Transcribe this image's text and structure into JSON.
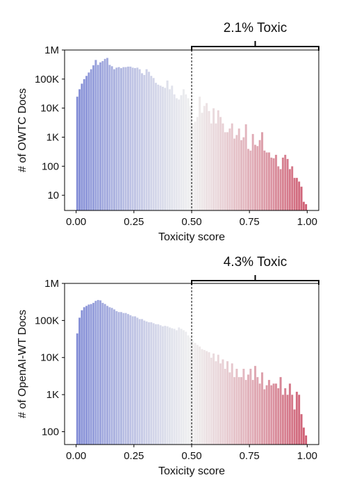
{
  "chart_data": [
    {
      "type": "bar",
      "panel": "top",
      "xlabel": "Toxicity score",
      "ylabel": "# of OWTC Docs",
      "yscale": "log",
      "xlim": [
        -0.05,
        1.05
      ],
      "ylim": [
        3,
        1000000
      ],
      "xticks": [
        0.0,
        0.25,
        0.5,
        0.75,
        1.0
      ],
      "xtick_labels": [
        "0.00",
        "0.25",
        "0.50",
        "0.75",
        "1.00"
      ],
      "yticks": [
        10,
        100,
        1000,
        10000,
        100000,
        1000000
      ],
      "ytick_labels": [
        "10",
        "100",
        "1K",
        "10K",
        "100K",
        "1M"
      ],
      "threshold": 0.5,
      "bracket": {
        "from": 0.5,
        "to": 1.05,
        "label": "2.1% Toxic"
      },
      "bin_width": 0.01,
      "colormap": {
        "low": "#3b4cc0",
        "mid": "#dddddd",
        "high": "#b40426"
      },
      "bin_starts": [
        0.0,
        0.01,
        0.02,
        0.03,
        0.04,
        0.05,
        0.06,
        0.07,
        0.08,
        0.09,
        0.1,
        0.11,
        0.12,
        0.13,
        0.14,
        0.15,
        0.16,
        0.17,
        0.18,
        0.19,
        0.2,
        0.21,
        0.22,
        0.23,
        0.24,
        0.25,
        0.26,
        0.27,
        0.28,
        0.29,
        0.3,
        0.31,
        0.32,
        0.33,
        0.34,
        0.35,
        0.36,
        0.37,
        0.38,
        0.39,
        0.4,
        0.41,
        0.42,
        0.43,
        0.44,
        0.45,
        0.46,
        0.47,
        0.48,
        0.49,
        0.5,
        0.51,
        0.52,
        0.53,
        0.54,
        0.55,
        0.56,
        0.57,
        0.58,
        0.59,
        0.6,
        0.61,
        0.62,
        0.63,
        0.64,
        0.65,
        0.66,
        0.67,
        0.68,
        0.69,
        0.7,
        0.71,
        0.72,
        0.73,
        0.74,
        0.75,
        0.76,
        0.77,
        0.78,
        0.79,
        0.8,
        0.81,
        0.82,
        0.83,
        0.84,
        0.85,
        0.86,
        0.87,
        0.88,
        0.89,
        0.9,
        0.91,
        0.92,
        0.93,
        0.94,
        0.95,
        0.96,
        0.97,
        0.98,
        0.99
      ],
      "values": [
        25000,
        45000,
        70000,
        100000,
        130000,
        170000,
        220000,
        300000,
        460000,
        310000,
        380000,
        420000,
        500000,
        540000,
        310000,
        280000,
        220000,
        250000,
        260000,
        240000,
        260000,
        260000,
        270000,
        270000,
        250000,
        240000,
        250000,
        220000,
        160000,
        140000,
        220000,
        180000,
        130000,
        110000,
        75000,
        65000,
        60000,
        55000,
        50000,
        90000,
        45000,
        60000,
        30000,
        22000,
        20000,
        28000,
        45000,
        30000,
        22000,
        12000,
        3000,
        3500,
        5000,
        25000,
        7000,
        12000,
        15000,
        8000,
        3000,
        10000,
        3000,
        8500,
        5000,
        3000,
        1500,
        1500,
        2000,
        3000,
        900,
        1200,
        2000,
        800,
        1000,
        2800,
        400,
        350,
        1300,
        550,
        500,
        800,
        1500,
        350,
        300,
        300,
        200,
        190,
        250,
        100,
        80,
        200,
        250,
        180,
        80,
        100,
        40,
        40,
        30,
        20,
        6,
        5
      ]
    },
    {
      "type": "bar",
      "panel": "bottom",
      "xlabel": "Toxicity score",
      "ylabel": "# of OpenAI-WT Docs",
      "yscale": "log",
      "xlim": [
        -0.05,
        1.05
      ],
      "ylim": [
        45,
        1000000
      ],
      "xticks": [
        0.0,
        0.25,
        0.5,
        0.75,
        1.0
      ],
      "xtick_labels": [
        "0.00",
        "0.25",
        "0.50",
        "0.75",
        "1.00"
      ],
      "yticks": [
        100,
        1000,
        10000,
        100000,
        1000000
      ],
      "ytick_labels": [
        "100",
        "1K",
        "10K",
        "100K",
        "1M"
      ],
      "threshold": 0.5,
      "bracket": {
        "from": 0.5,
        "to": 1.05,
        "label": "4.3% Toxic"
      },
      "bin_width": 0.01,
      "colormap": {
        "low": "#3b4cc0",
        "mid": "#dddddd",
        "high": "#b40426"
      },
      "bin_starts": [
        0.0,
        0.01,
        0.02,
        0.03,
        0.04,
        0.05,
        0.06,
        0.07,
        0.08,
        0.09,
        0.1,
        0.11,
        0.12,
        0.13,
        0.14,
        0.15,
        0.16,
        0.17,
        0.18,
        0.19,
        0.2,
        0.21,
        0.22,
        0.23,
        0.24,
        0.25,
        0.26,
        0.27,
        0.28,
        0.29,
        0.3,
        0.31,
        0.32,
        0.33,
        0.34,
        0.35,
        0.36,
        0.37,
        0.38,
        0.39,
        0.4,
        0.41,
        0.42,
        0.43,
        0.44,
        0.45,
        0.46,
        0.47,
        0.48,
        0.49,
        0.5,
        0.51,
        0.52,
        0.53,
        0.54,
        0.55,
        0.56,
        0.57,
        0.58,
        0.59,
        0.6,
        0.61,
        0.62,
        0.63,
        0.64,
        0.65,
        0.66,
        0.67,
        0.68,
        0.69,
        0.7,
        0.71,
        0.72,
        0.73,
        0.74,
        0.75,
        0.76,
        0.77,
        0.78,
        0.79,
        0.8,
        0.81,
        0.82,
        0.83,
        0.84,
        0.85,
        0.86,
        0.87,
        0.88,
        0.89,
        0.9,
        0.91,
        0.92,
        0.93,
        0.94,
        0.95,
        0.96,
        0.97,
        0.98,
        0.99
      ],
      "values": [
        45000,
        120000,
        190000,
        230000,
        250000,
        270000,
        280000,
        300000,
        340000,
        360000,
        350000,
        300000,
        280000,
        250000,
        230000,
        220000,
        200000,
        180000,
        170000,
        170000,
        160000,
        160000,
        150000,
        140000,
        130000,
        130000,
        120000,
        110000,
        110000,
        100000,
        95000,
        90000,
        90000,
        85000,
        80000,
        80000,
        75000,
        70000,
        72000,
        70000,
        65000,
        62000,
        60000,
        55000,
        65000,
        60000,
        55000,
        50000,
        40000,
        35000,
        28000,
        25000,
        22000,
        20000,
        17000,
        16000,
        15000,
        14000,
        10000,
        13000,
        8000,
        12000,
        7000,
        9000,
        5000,
        8000,
        4000,
        7000,
        3000,
        5000,
        3000,
        3000,
        5000,
        2500,
        3500,
        5000,
        2500,
        6000,
        3000,
        2000,
        4000,
        1400,
        1800,
        2500,
        1800,
        2000,
        2000,
        1500,
        3000,
        1000,
        1500,
        1000,
        2000,
        1000,
        400,
        1200,
        1000,
        300,
        130,
        80
      ]
    }
  ]
}
